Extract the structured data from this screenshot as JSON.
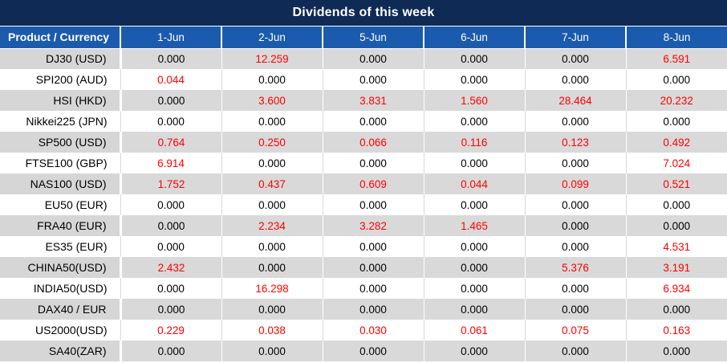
{
  "title": "Dividends of this week",
  "colors": {
    "title_bar_bg": "#0e2a55",
    "header_bg": "#1b5bad",
    "row_grey": "#d9d9d9",
    "row_white": "#ffffff",
    "value_zero_text": "#000000",
    "value_nonzero_text": "#ff0000",
    "header_text": "#ffffff"
  },
  "table": {
    "header": [
      "Product / Currency",
      "1-Jun",
      "2-Jun",
      "5-Jun",
      "6-Jun",
      "7-Jun",
      "8-Jun"
    ],
    "rows": [
      {
        "product": "DJ30 (USD)",
        "values": [
          "0.000",
          "12.259",
          "0.000",
          "0.000",
          "0.000",
          "6.591"
        ]
      },
      {
        "product": "SPI200 (AUD)",
        "values": [
          "0.044",
          "0.000",
          "0.000",
          "0.000",
          "0.000",
          "0.000"
        ]
      },
      {
        "product": "HSI (HKD)",
        "values": [
          "0.000",
          "3.600",
          "3.831",
          "1.560",
          "28.464",
          "20.232"
        ]
      },
      {
        "product": "Nikkei225 (JPN)",
        "values": [
          "0.000",
          "0.000",
          "0.000",
          "0.000",
          "0.000",
          "0.000"
        ]
      },
      {
        "product": "SP500 (USD)",
        "values": [
          "0.764",
          "0.250",
          "0.066",
          "0.116",
          "0.123",
          "0.492"
        ]
      },
      {
        "product": "FTSE100 (GBP)",
        "values": [
          "6.914",
          "0.000",
          "0.000",
          "0.000",
          "0.000",
          "7.024"
        ]
      },
      {
        "product": "NAS100 (USD)",
        "values": [
          "1.752",
          "0.437",
          "0.609",
          "0.044",
          "0.099",
          "0.521"
        ]
      },
      {
        "product": "EU50 (EUR)",
        "values": [
          "0.000",
          "0.000",
          "0.000",
          "0.000",
          "0.000",
          "0.000"
        ]
      },
      {
        "product": "FRA40 (EUR)",
        "values": [
          "0.000",
          "2.234",
          "3.282",
          "1.465",
          "0.000",
          "0.000"
        ]
      },
      {
        "product": "ES35 (EUR)",
        "values": [
          "0.000",
          "0.000",
          "0.000",
          "0.000",
          "0.000",
          "4.531"
        ]
      },
      {
        "product": "CHINA50(USD)",
        "values": [
          "2.432",
          "0.000",
          "0.000",
          "0.000",
          "5.376",
          "3.191"
        ]
      },
      {
        "product": "INDIA50(USD)",
        "values": [
          "0.000",
          "16.298",
          "0.000",
          "0.000",
          "0.000",
          "6.934"
        ]
      },
      {
        "product": "DAX40 / EUR",
        "values": [
          "0.000",
          "0.000",
          "0.000",
          "0.000",
          "0.000",
          "0.000"
        ]
      },
      {
        "product": "US2000(USD)",
        "values": [
          "0.229",
          "0.038",
          "0.030",
          "0.061",
          "0.075",
          "0.163"
        ]
      },
      {
        "product": "SA40(ZAR)",
        "values": [
          "0.000",
          "0.000",
          "0.000",
          "0.000",
          "0.000",
          "0.000"
        ]
      }
    ]
  },
  "chart_data": {
    "type": "table",
    "title": "Dividends of this week",
    "columns": [
      "Product / Currency",
      "1-Jun",
      "2-Jun",
      "5-Jun",
      "6-Jun",
      "7-Jun",
      "8-Jun"
    ],
    "rows": [
      [
        "DJ30 (USD)",
        0.0,
        12.259,
        0.0,
        0.0,
        0.0,
        6.591
      ],
      [
        "SPI200 (AUD)",
        0.044,
        0.0,
        0.0,
        0.0,
        0.0,
        0.0
      ],
      [
        "HSI (HKD)",
        0.0,
        3.6,
        3.831,
        1.56,
        28.464,
        20.232
      ],
      [
        "Nikkei225 (JPN)",
        0.0,
        0.0,
        0.0,
        0.0,
        0.0,
        0.0
      ],
      [
        "SP500 (USD)",
        0.764,
        0.25,
        0.066,
        0.116,
        0.123,
        0.492
      ],
      [
        "FTSE100 (GBP)",
        6.914,
        0.0,
        0.0,
        0.0,
        0.0,
        7.024
      ],
      [
        "NAS100 (USD)",
        1.752,
        0.437,
        0.609,
        0.044,
        0.099,
        0.521
      ],
      [
        "EU50 (EUR)",
        0.0,
        0.0,
        0.0,
        0.0,
        0.0,
        0.0
      ],
      [
        "FRA40 (EUR)",
        0.0,
        2.234,
        3.282,
        1.465,
        0.0,
        0.0
      ],
      [
        "ES35 (EUR)",
        0.0,
        0.0,
        0.0,
        0.0,
        0.0,
        4.531
      ],
      [
        "CHINA50(USD)",
        2.432,
        0.0,
        0.0,
        0.0,
        5.376,
        3.191
      ],
      [
        "INDIA50(USD)",
        0.0,
        16.298,
        0.0,
        0.0,
        0.0,
        6.934
      ],
      [
        "DAX40 / EUR",
        0.0,
        0.0,
        0.0,
        0.0,
        0.0,
        0.0
      ],
      [
        "US2000(USD)",
        0.229,
        0.038,
        0.03,
        0.061,
        0.075,
        0.163
      ],
      [
        "SA40(ZAR)",
        0.0,
        0.0,
        0.0,
        0.0,
        0.0,
        0.0
      ]
    ],
    "notes": "Non-zero values rendered in red; zeros in black. Rows alternate grey/white starting with grey."
  }
}
